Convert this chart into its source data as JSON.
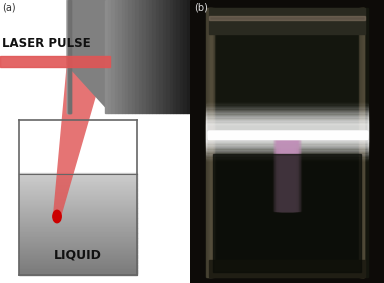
{
  "bg_color": "#ffffff",
  "laser_label": "LASER PULSE",
  "liquid_label": "LIQUID",
  "laser_beam_color": "#e05555",
  "laser_strip_color": "#e05555",
  "focal_dot_color": "#cc0000",
  "container_border_color": "#666666",
  "label_fontsize": 8.5,
  "label_color": "#111111",
  "panel_a_label": "(a)",
  "panel_b_label": "(b)"
}
